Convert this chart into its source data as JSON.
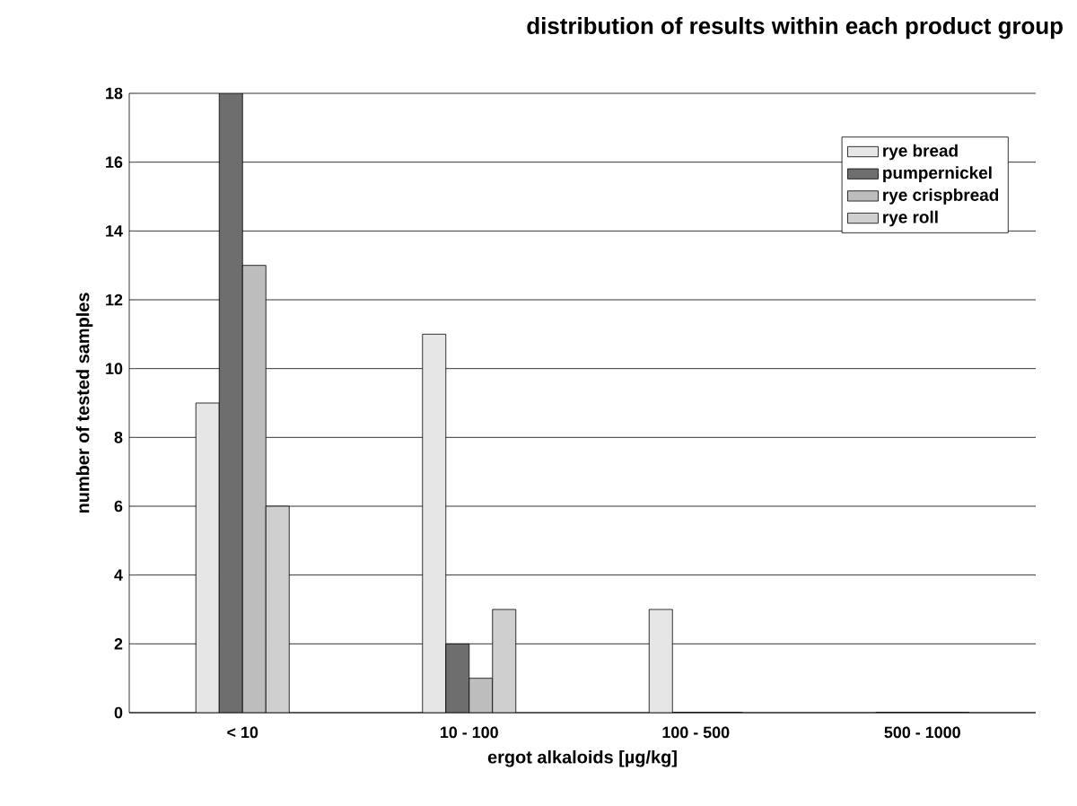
{
  "chart_data": {
    "type": "bar",
    "title": "distribution of results within each product group",
    "xlabel": "ergot alkaloids [µg/kg]",
    "ylabel": "number of tested samples",
    "categories": [
      "< 10",
      "10 - 100",
      "100 - 500",
      "500 - 1000"
    ],
    "series": [
      {
        "name": "rye bread",
        "color": "#e6e6e6",
        "values": [
          9,
          11,
          3,
          0
        ]
      },
      {
        "name": "pumpernickel",
        "color": "#6e6e6e",
        "values": [
          18,
          2,
          0,
          0
        ]
      },
      {
        "name": "rye crispbread",
        "color": "#bdbdbd",
        "values": [
          13,
          1,
          0,
          0
        ]
      },
      {
        "name": "rye roll",
        "color": "#cfcfcf",
        "values": [
          6,
          3,
          0,
          0
        ]
      }
    ],
    "ylim": [
      0,
      18
    ],
    "yticks": [
      0,
      2,
      4,
      6,
      8,
      10,
      12,
      14,
      16,
      18
    ],
    "grid": "y",
    "legend": "top right"
  }
}
